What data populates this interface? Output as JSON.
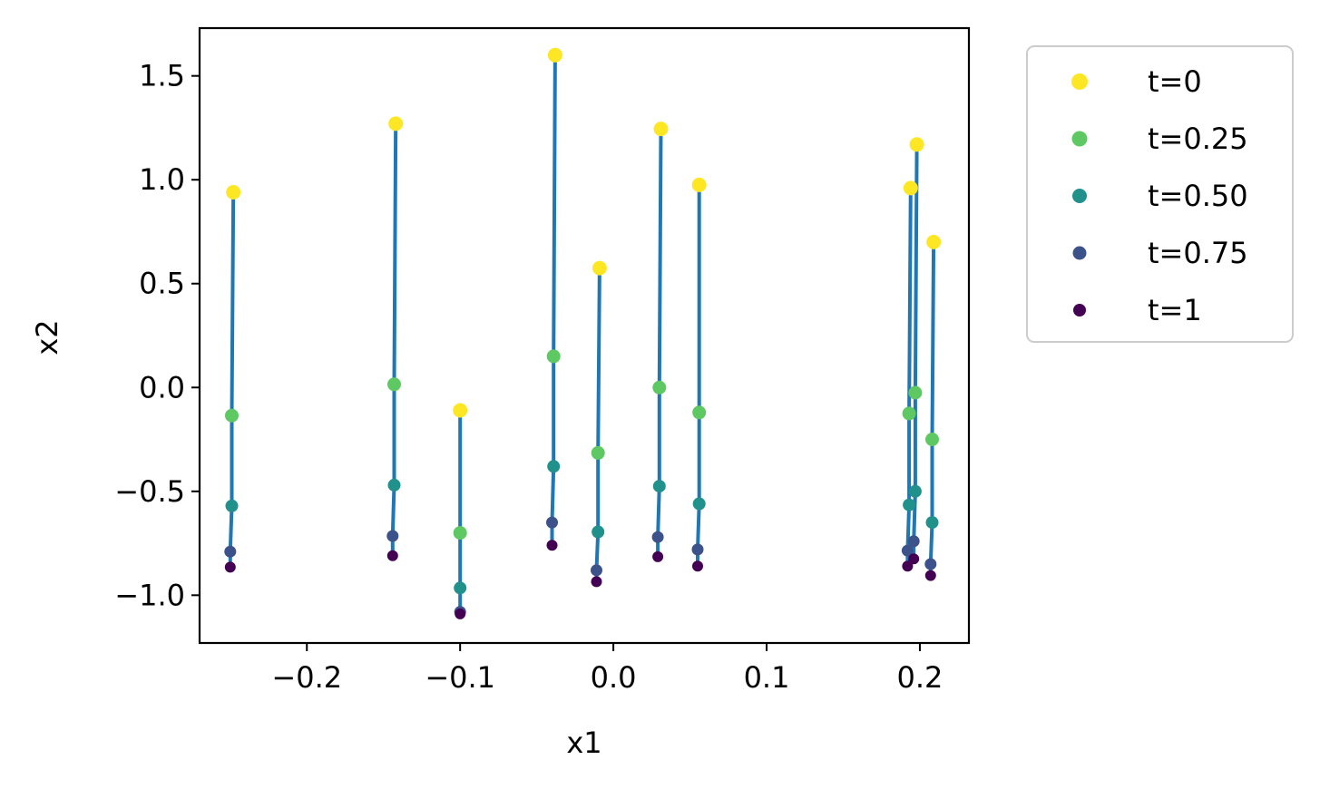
{
  "chart_data": {
    "type": "scatter",
    "title": "",
    "xlabel": "x1",
    "ylabel": "x2",
    "xlim": [
      -0.27,
      0.232
    ],
    "ylim": [
      -1.23,
      1.73
    ],
    "xticks": [
      {
        "value": -0.2,
        "label": "−0.2"
      },
      {
        "value": -0.1,
        "label": "−0.1"
      },
      {
        "value": 0.0,
        "label": "0.0"
      },
      {
        "value": 0.1,
        "label": "0.1"
      },
      {
        "value": 0.2,
        "label": "0.2"
      }
    ],
    "yticks": [
      {
        "value": -1.0,
        "label": "−1.0"
      },
      {
        "value": -0.5,
        "label": "−0.5"
      },
      {
        "value": 0.0,
        "label": "0.0"
      },
      {
        "value": 0.5,
        "label": "0.5"
      },
      {
        "value": 1.0,
        "label": "1.0"
      },
      {
        "value": 1.5,
        "label": "1.5"
      }
    ],
    "grid": false,
    "legend_position": "outside-right-top",
    "trajectory_color": "#1f77b4",
    "series": [
      {
        "name": "t=0",
        "color": "#fde725",
        "marker_size": 8,
        "points": [
          [
            -0.248,
            0.94
          ],
          [
            -0.142,
            1.27
          ],
          [
            -0.1,
            -0.11
          ],
          [
            -0.038,
            1.6
          ],
          [
            -0.009,
            0.575
          ],
          [
            0.031,
            1.245
          ],
          [
            0.056,
            0.975
          ],
          [
            0.194,
            0.96
          ],
          [
            0.198,
            1.17
          ],
          [
            0.209,
            0.7
          ]
        ]
      },
      {
        "name": "t=0.25",
        "color": "#5ec962",
        "marker_size": 7.5,
        "points": [
          [
            -0.249,
            -0.135
          ],
          [
            -0.143,
            0.015
          ],
          [
            -0.1,
            -0.7
          ],
          [
            -0.039,
            0.15
          ],
          [
            -0.01,
            -0.315
          ],
          [
            0.03,
            0.0
          ],
          [
            0.056,
            -0.12
          ],
          [
            0.193,
            -0.125
          ],
          [
            0.197,
            -0.025
          ],
          [
            0.208,
            -0.25
          ]
        ]
      },
      {
        "name": "t=0.50",
        "color": "#21918c",
        "marker_size": 7,
        "points": [
          [
            -0.249,
            -0.57
          ],
          [
            -0.143,
            -0.47
          ],
          [
            -0.1,
            -0.965
          ],
          [
            -0.039,
            -0.38
          ],
          [
            -0.01,
            -0.695
          ],
          [
            0.03,
            -0.475
          ],
          [
            0.056,
            -0.56
          ],
          [
            0.193,
            -0.565
          ],
          [
            0.197,
            -0.5
          ],
          [
            0.208,
            -0.65
          ]
        ]
      },
      {
        "name": "t=0.75",
        "color": "#3b528b",
        "marker_size": 6.5,
        "points": [
          [
            -0.25,
            -0.79
          ],
          [
            -0.144,
            -0.715
          ],
          [
            -0.1,
            -1.08
          ],
          [
            -0.04,
            -0.65
          ],
          [
            -0.011,
            -0.88
          ],
          [
            0.029,
            -0.72
          ],
          [
            0.055,
            -0.78
          ],
          [
            0.192,
            -0.785
          ],
          [
            0.196,
            -0.74
          ],
          [
            0.207,
            -0.85
          ]
        ]
      },
      {
        "name": "t=1",
        "color": "#440154",
        "marker_size": 6,
        "points": [
          [
            -0.25,
            -0.865
          ],
          [
            -0.144,
            -0.81
          ],
          [
            -0.1,
            -1.09
          ],
          [
            -0.04,
            -0.76
          ],
          [
            -0.011,
            -0.935
          ],
          [
            0.029,
            -0.815
          ],
          [
            0.055,
            -0.86
          ],
          [
            0.192,
            -0.86
          ],
          [
            0.196,
            -0.825
          ],
          [
            0.207,
            -0.905
          ]
        ]
      }
    ]
  }
}
